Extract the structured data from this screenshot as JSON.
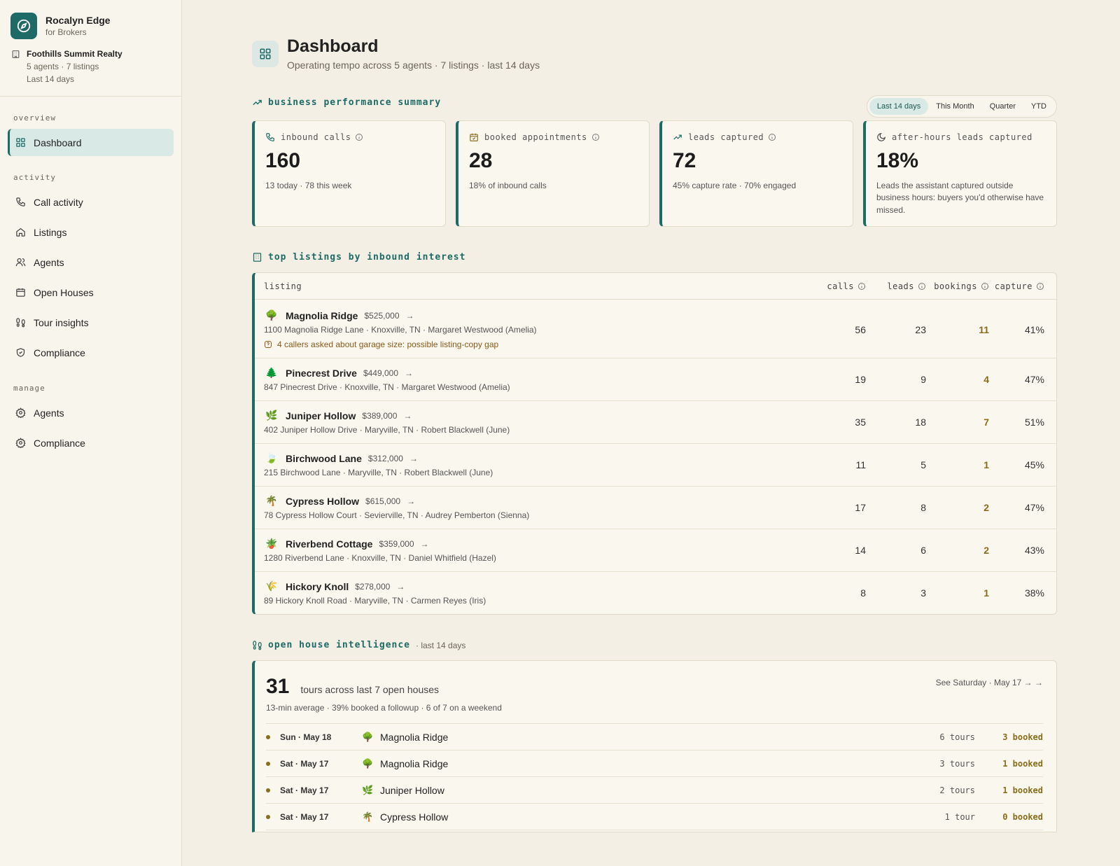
{
  "sidebar": {
    "brand": {
      "name": "Rocalyn Edge",
      "sub": "for Brokers"
    },
    "org": {
      "name": "Foothills Summit Realty",
      "line1": "5 agents · 7 listings",
      "line2": "Last 14 days"
    },
    "sections": [
      {
        "title": "overview",
        "items": [
          {
            "label": "Dashboard",
            "icon": "grid-icon",
            "active": true
          }
        ]
      },
      {
        "title": "activity",
        "items": [
          {
            "label": "Call activity",
            "icon": "phone-icon"
          },
          {
            "label": "Listings",
            "icon": "home-icon"
          },
          {
            "label": "Agents",
            "icon": "users-icon"
          },
          {
            "label": "Open Houses",
            "icon": "calendar-icon"
          },
          {
            "label": "Tour insights",
            "icon": "footprints-icon"
          },
          {
            "label": "Compliance",
            "icon": "shield-icon"
          }
        ]
      },
      {
        "title": "manage",
        "items": [
          {
            "label": "Agents",
            "icon": "gear-icon"
          },
          {
            "label": "Compliance",
            "icon": "gear-icon"
          }
        ]
      }
    ]
  },
  "header": {
    "title": "Dashboard",
    "subtitle": "Operating tempo across 5 agents · 7 listings · last 14 days"
  },
  "summary": {
    "title": "business performance summary",
    "ranges": [
      "Last 14 days",
      "This Month",
      "Quarter",
      "YTD"
    ],
    "selected_range": "Last 14 days",
    "kpis": [
      {
        "label": "inbound calls",
        "value": "160",
        "note": "13 today · 78 this week"
      },
      {
        "label": "booked appointments",
        "value": "28",
        "note": "18% of inbound calls"
      },
      {
        "label": "leads captured",
        "value": "72",
        "note": "45% capture rate · 70% engaged"
      },
      {
        "label": "after-hours leads captured",
        "value": "18%",
        "note": "Leads the assistant captured outside business hours: buyers you'd otherwise have missed."
      }
    ]
  },
  "listings": {
    "title": "top listings by inbound interest",
    "columns": {
      "listing": "listing",
      "calls": "calls",
      "leads": "leads",
      "bookings": "bookings",
      "capture": "capture"
    },
    "rows": [
      {
        "emoji": "🌳",
        "name": "Magnolia Ridge",
        "price": "$525,000",
        "address": "1100 Magnolia Ridge Lane · Knoxville, TN · Margaret Westwood (Amelia)",
        "warning": "4 callers asked about garage size: possible listing-copy gap",
        "calls": "56",
        "leads": "23",
        "bookings": "11",
        "capture": "41%"
      },
      {
        "emoji": "🌲",
        "name": "Pinecrest Drive",
        "price": "$449,000",
        "address": "847 Pinecrest Drive · Knoxville, TN · Margaret Westwood (Amelia)",
        "calls": "19",
        "leads": "9",
        "bookings": "4",
        "capture": "47%"
      },
      {
        "emoji": "🌿",
        "name": "Juniper Hollow",
        "price": "$389,000",
        "address": "402 Juniper Hollow Drive · Maryville, TN · Robert Blackwell (June)",
        "calls": "35",
        "leads": "18",
        "bookings": "7",
        "capture": "51%"
      },
      {
        "emoji": "🍃",
        "name": "Birchwood Lane",
        "price": "$312,000",
        "address": "215 Birchwood Lane · Maryville, TN · Robert Blackwell (June)",
        "calls": "11",
        "leads": "5",
        "bookings": "1",
        "capture": "45%"
      },
      {
        "emoji": "🌴",
        "name": "Cypress Hollow",
        "price": "$615,000",
        "address": "78 Cypress Hollow Court · Sevierville, TN · Audrey Pemberton (Sienna)",
        "calls": "17",
        "leads": "8",
        "bookings": "2",
        "capture": "47%"
      },
      {
        "emoji": "🪴",
        "name": "Riverbend Cottage",
        "price": "$359,000",
        "address": "1280 Riverbend Lane · Knoxville, TN · Daniel Whitfield (Hazel)",
        "calls": "14",
        "leads": "6",
        "bookings": "2",
        "capture": "43%"
      },
      {
        "emoji": "🌾",
        "name": "Hickory Knoll",
        "price": "$278,000",
        "address": "89 Hickory Knoll Road · Maryville, TN · Carmen Reyes (Iris)",
        "calls": "8",
        "leads": "3",
        "bookings": "1",
        "capture": "38%"
      }
    ]
  },
  "open_house": {
    "title": "open house intelligence",
    "note": "· last 14 days",
    "big_number": "31",
    "big_text": "tours across last 7 open houses",
    "sub": "13-min average · 39% booked a followup · 6 of 7 on a weekend",
    "link": "See Saturday · May 17 → →",
    "rows": [
      {
        "date": "Sun · May 18",
        "emoji": "🌳",
        "listing": "Magnolia Ridge",
        "tours": "6 tours",
        "booked": "3 booked"
      },
      {
        "date": "Sat · May 17",
        "emoji": "🌳",
        "listing": "Magnolia Ridge",
        "tours": "3 tours",
        "booked": "1 booked"
      },
      {
        "date": "Sat · May 17",
        "emoji": "🌿",
        "listing": "Juniper Hollow",
        "tours": "2 tours",
        "booked": "1 booked"
      },
      {
        "date": "Sat · May 17",
        "emoji": "🌴",
        "listing": "Cypress Hollow",
        "tours": "1 tour",
        "booked": "0 booked"
      }
    ]
  },
  "colors": {
    "accent": "#1d6a66",
    "background": "#f3efe4",
    "booking": "#8a6d1a"
  }
}
